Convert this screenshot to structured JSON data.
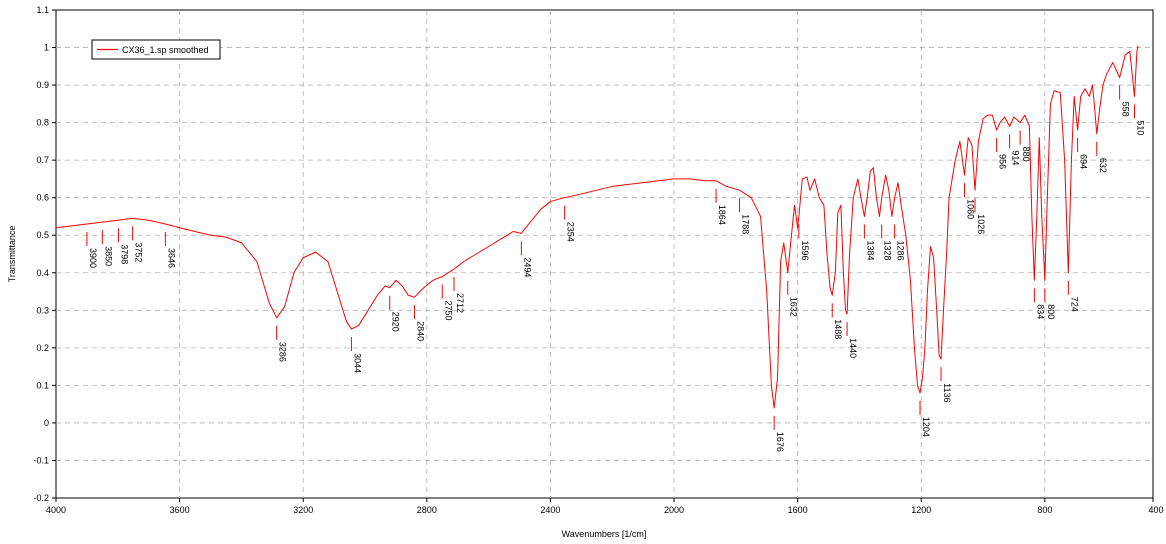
{
  "chart_data": {
    "type": "line",
    "xlabel": "Wavenumbers [1/cm]",
    "ylabel": "Transmittance",
    "xlim": [
      4000,
      450
    ],
    "ylim": [
      -0.2,
      1.1
    ],
    "x_reversed": true,
    "grid": true,
    "legend_position": "top-left",
    "x_ticks": [
      4000,
      3600,
      3200,
      2800,
      2400,
      2000,
      1600,
      1200,
      800,
      400
    ],
    "y_ticks": [
      -0.2,
      -0.1,
      0,
      0.1,
      0.2,
      0.3,
      0.4,
      0.5,
      0.6,
      0.7,
      0.8,
      0.9,
      1,
      1.1
    ],
    "x_tick_labels": [
      "4000",
      "3600",
      "3200",
      "2800",
      "2400",
      "2000",
      "1600",
      "1200",
      "800",
      "400"
    ],
    "y_tick_labels": [
      "-0.2",
      "-0.1",
      "0",
      "0.1",
      "0.2",
      "0.3",
      "0.4",
      "0.5",
      "0.6",
      "0.7",
      "0.8",
      "0.9",
      "1",
      "1.1"
    ],
    "series": [
      {
        "name": "CX36_1.sp smoothed",
        "color": "#ff0000",
        "points": [
          [
            4000,
            0.52
          ],
          [
            3950,
            0.525
          ],
          [
            3900,
            0.53
          ],
          [
            3850,
            0.535
          ],
          [
            3800,
            0.54
          ],
          [
            3752,
            0.545
          ],
          [
            3700,
            0.54
          ],
          [
            3646,
            0.53
          ],
          [
            3600,
            0.52
          ],
          [
            3550,
            0.51
          ],
          [
            3500,
            0.5
          ],
          [
            3450,
            0.495
          ],
          [
            3400,
            0.48
          ],
          [
            3350,
            0.43
          ],
          [
            3310,
            0.32
          ],
          [
            3286,
            0.28
          ],
          [
            3260,
            0.31
          ],
          [
            3230,
            0.4
          ],
          [
            3200,
            0.44
          ],
          [
            3160,
            0.455
          ],
          [
            3120,
            0.43
          ],
          [
            3090,
            0.35
          ],
          [
            3060,
            0.27
          ],
          [
            3044,
            0.25
          ],
          [
            3020,
            0.26
          ],
          [
            2990,
            0.3
          ],
          [
            2960,
            0.34
          ],
          [
            2935,
            0.365
          ],
          [
            2920,
            0.36
          ],
          [
            2900,
            0.38
          ],
          [
            2880,
            0.365
          ],
          [
            2860,
            0.34
          ],
          [
            2840,
            0.335
          ],
          [
            2810,
            0.36
          ],
          [
            2780,
            0.38
          ],
          [
            2750,
            0.39
          ],
          [
            2712,
            0.41
          ],
          [
            2680,
            0.43
          ],
          [
            2640,
            0.45
          ],
          [
            2600,
            0.47
          ],
          [
            2560,
            0.49
          ],
          [
            2520,
            0.51
          ],
          [
            2494,
            0.505
          ],
          [
            2470,
            0.53
          ],
          [
            2430,
            0.57
          ],
          [
            2400,
            0.59
          ],
          [
            2354,
            0.6
          ],
          [
            2300,
            0.61
          ],
          [
            2250,
            0.62
          ],
          [
            2200,
            0.63
          ],
          [
            2150,
            0.635
          ],
          [
            2100,
            0.64
          ],
          [
            2050,
            0.645
          ],
          [
            2000,
            0.65
          ],
          [
            1950,
            0.65
          ],
          [
            1900,
            0.645
          ],
          [
            1864,
            0.645
          ],
          [
            1830,
            0.63
          ],
          [
            1788,
            0.62
          ],
          [
            1750,
            0.6
          ],
          [
            1720,
            0.55
          ],
          [
            1700,
            0.35
          ],
          [
            1685,
            0.1
          ],
          [
            1676,
            0.04
          ],
          [
            1665,
            0.12
          ],
          [
            1655,
            0.43
          ],
          [
            1645,
            0.48
          ],
          [
            1632,
            0.4
          ],
          [
            1620,
            0.5
          ],
          [
            1610,
            0.58
          ],
          [
            1600,
            0.52
          ],
          [
            1596,
            0.55
          ],
          [
            1585,
            0.65
          ],
          [
            1570,
            0.655
          ],
          [
            1560,
            0.62
          ],
          [
            1545,
            0.65
          ],
          [
            1530,
            0.6
          ],
          [
            1515,
            0.58
          ],
          [
            1505,
            0.45
          ],
          [
            1495,
            0.36
          ],
          [
            1488,
            0.34
          ],
          [
            1478,
            0.4
          ],
          [
            1470,
            0.56
          ],
          [
            1460,
            0.58
          ],
          [
            1452,
            0.4
          ],
          [
            1445,
            0.3
          ],
          [
            1440,
            0.29
          ],
          [
            1432,
            0.45
          ],
          [
            1420,
            0.6
          ],
          [
            1405,
            0.65
          ],
          [
            1395,
            0.6
          ],
          [
            1384,
            0.55
          ],
          [
            1375,
            0.6
          ],
          [
            1365,
            0.67
          ],
          [
            1355,
            0.68
          ],
          [
            1345,
            0.6
          ],
          [
            1335,
            0.55
          ],
          [
            1328,
            0.6
          ],
          [
            1315,
            0.66
          ],
          [
            1305,
            0.62
          ],
          [
            1295,
            0.55
          ],
          [
            1286,
            0.6
          ],
          [
            1275,
            0.64
          ],
          [
            1265,
            0.58
          ],
          [
            1250,
            0.5
          ],
          [
            1235,
            0.38
          ],
          [
            1222,
            0.2
          ],
          [
            1212,
            0.1
          ],
          [
            1204,
            0.08
          ],
          [
            1196,
            0.12
          ],
          [
            1188,
            0.2
          ],
          [
            1180,
            0.35
          ],
          [
            1170,
            0.47
          ],
          [
            1160,
            0.44
          ],
          [
            1150,
            0.3
          ],
          [
            1142,
            0.18
          ],
          [
            1136,
            0.17
          ],
          [
            1128,
            0.3
          ],
          [
            1118,
            0.45
          ],
          [
            1110,
            0.6
          ],
          [
            1100,
            0.65
          ],
          [
            1090,
            0.7
          ],
          [
            1075,
            0.75
          ],
          [
            1060,
            0.66
          ],
          [
            1048,
            0.76
          ],
          [
            1036,
            0.74
          ],
          [
            1026,
            0.62
          ],
          [
            1015,
            0.75
          ],
          [
            1000,
            0.81
          ],
          [
            985,
            0.82
          ],
          [
            970,
            0.82
          ],
          [
            956,
            0.78
          ],
          [
            945,
            0.8
          ],
          [
            930,
            0.815
          ],
          [
            914,
            0.79
          ],
          [
            900,
            0.815
          ],
          [
            880,
            0.8
          ],
          [
            865,
            0.82
          ],
          [
            850,
            0.79
          ],
          [
            842,
            0.55
          ],
          [
            834,
            0.38
          ],
          [
            826,
            0.55
          ],
          [
            818,
            0.76
          ],
          [
            810,
            0.55
          ],
          [
            800,
            0.38
          ],
          [
            792,
            0.6
          ],
          [
            782,
            0.85
          ],
          [
            770,
            0.885
          ],
          [
            750,
            0.88
          ],
          [
            736,
            0.7
          ],
          [
            724,
            0.4
          ],
          [
            714,
            0.7
          ],
          [
            705,
            0.87
          ],
          [
            694,
            0.78
          ],
          [
            684,
            0.87
          ],
          [
            670,
            0.89
          ],
          [
            656,
            0.87
          ],
          [
            646,
            0.9
          ],
          [
            640,
            0.85
          ],
          [
            632,
            0.77
          ],
          [
            622,
            0.84
          ],
          [
            612,
            0.9
          ],
          [
            600,
            0.93
          ],
          [
            580,
            0.96
          ],
          [
            558,
            0.92
          ],
          [
            540,
            0.98
          ],
          [
            525,
            0.99
          ],
          [
            510,
            0.87
          ],
          [
            502,
            0.99
          ],
          [
            498,
            1.005
          ]
        ]
      }
    ],
    "annotations": [
      {
        "label": "3900",
        "x": 3900,
        "y": 0.53
      },
      {
        "label": "3850",
        "x": 3850,
        "y": 0.535
      },
      {
        "label": "3798",
        "x": 3798,
        "y": 0.54
      },
      {
        "label": "3752",
        "x": 3752,
        "y": 0.545
      },
      {
        "label": "3646",
        "x": 3646,
        "y": 0.53
      },
      {
        "label": "3286",
        "x": 3286,
        "y": 0.28
      },
      {
        "label": "3044",
        "x": 3044,
        "y": 0.25
      },
      {
        "label": "2920",
        "x": 2920,
        "y": 0.36
      },
      {
        "label": "2840",
        "x": 2840,
        "y": 0.335
      },
      {
        "label": "2750",
        "x": 2750,
        "y": 0.39
      },
      {
        "label": "2712",
        "x": 2712,
        "y": 0.41
      },
      {
        "label": "2494",
        "x": 2494,
        "y": 0.505
      },
      {
        "label": "2354",
        "x": 2354,
        "y": 0.6
      },
      {
        "label": "1864",
        "x": 1864,
        "y": 0.645
      },
      {
        "label": "1788",
        "x": 1788,
        "y": 0.62
      },
      {
        "label": "1676",
        "x": 1676,
        "y": 0.04
      },
      {
        "label": "1632",
        "x": 1632,
        "y": 0.4
      },
      {
        "label": "1596",
        "x": 1596,
        "y": 0.55
      },
      {
        "label": "1488",
        "x": 1488,
        "y": 0.34
      },
      {
        "label": "1440",
        "x": 1440,
        "y": 0.29
      },
      {
        "label": "1384",
        "x": 1384,
        "y": 0.55
      },
      {
        "label": "1328",
        "x": 1328,
        "y": 0.55
      },
      {
        "label": "1286",
        "x": 1286,
        "y": 0.55
      },
      {
        "label": "1204",
        "x": 1204,
        "y": 0.08
      },
      {
        "label": "1136",
        "x": 1136,
        "y": 0.17
      },
      {
        "label": "1060",
        "x": 1060,
        "y": 0.66
      },
      {
        "label": "1026",
        "x": 1026,
        "y": 0.62
      },
      {
        "label": "956",
        "x": 956,
        "y": 0.78
      },
      {
        "label": "914",
        "x": 914,
        "y": 0.79
      },
      {
        "label": "880",
        "x": 880,
        "y": 0.8
      },
      {
        "label": "834",
        "x": 834,
        "y": 0.38
      },
      {
        "label": "800",
        "x": 800,
        "y": 0.38
      },
      {
        "label": "724",
        "x": 724,
        "y": 0.4
      },
      {
        "label": "694",
        "x": 694,
        "y": 0.78
      },
      {
        "label": "632",
        "x": 632,
        "y": 0.77
      },
      {
        "label": "558",
        "x": 558,
        "y": 0.92
      },
      {
        "label": "510",
        "x": 510,
        "y": 0.87
      }
    ]
  }
}
